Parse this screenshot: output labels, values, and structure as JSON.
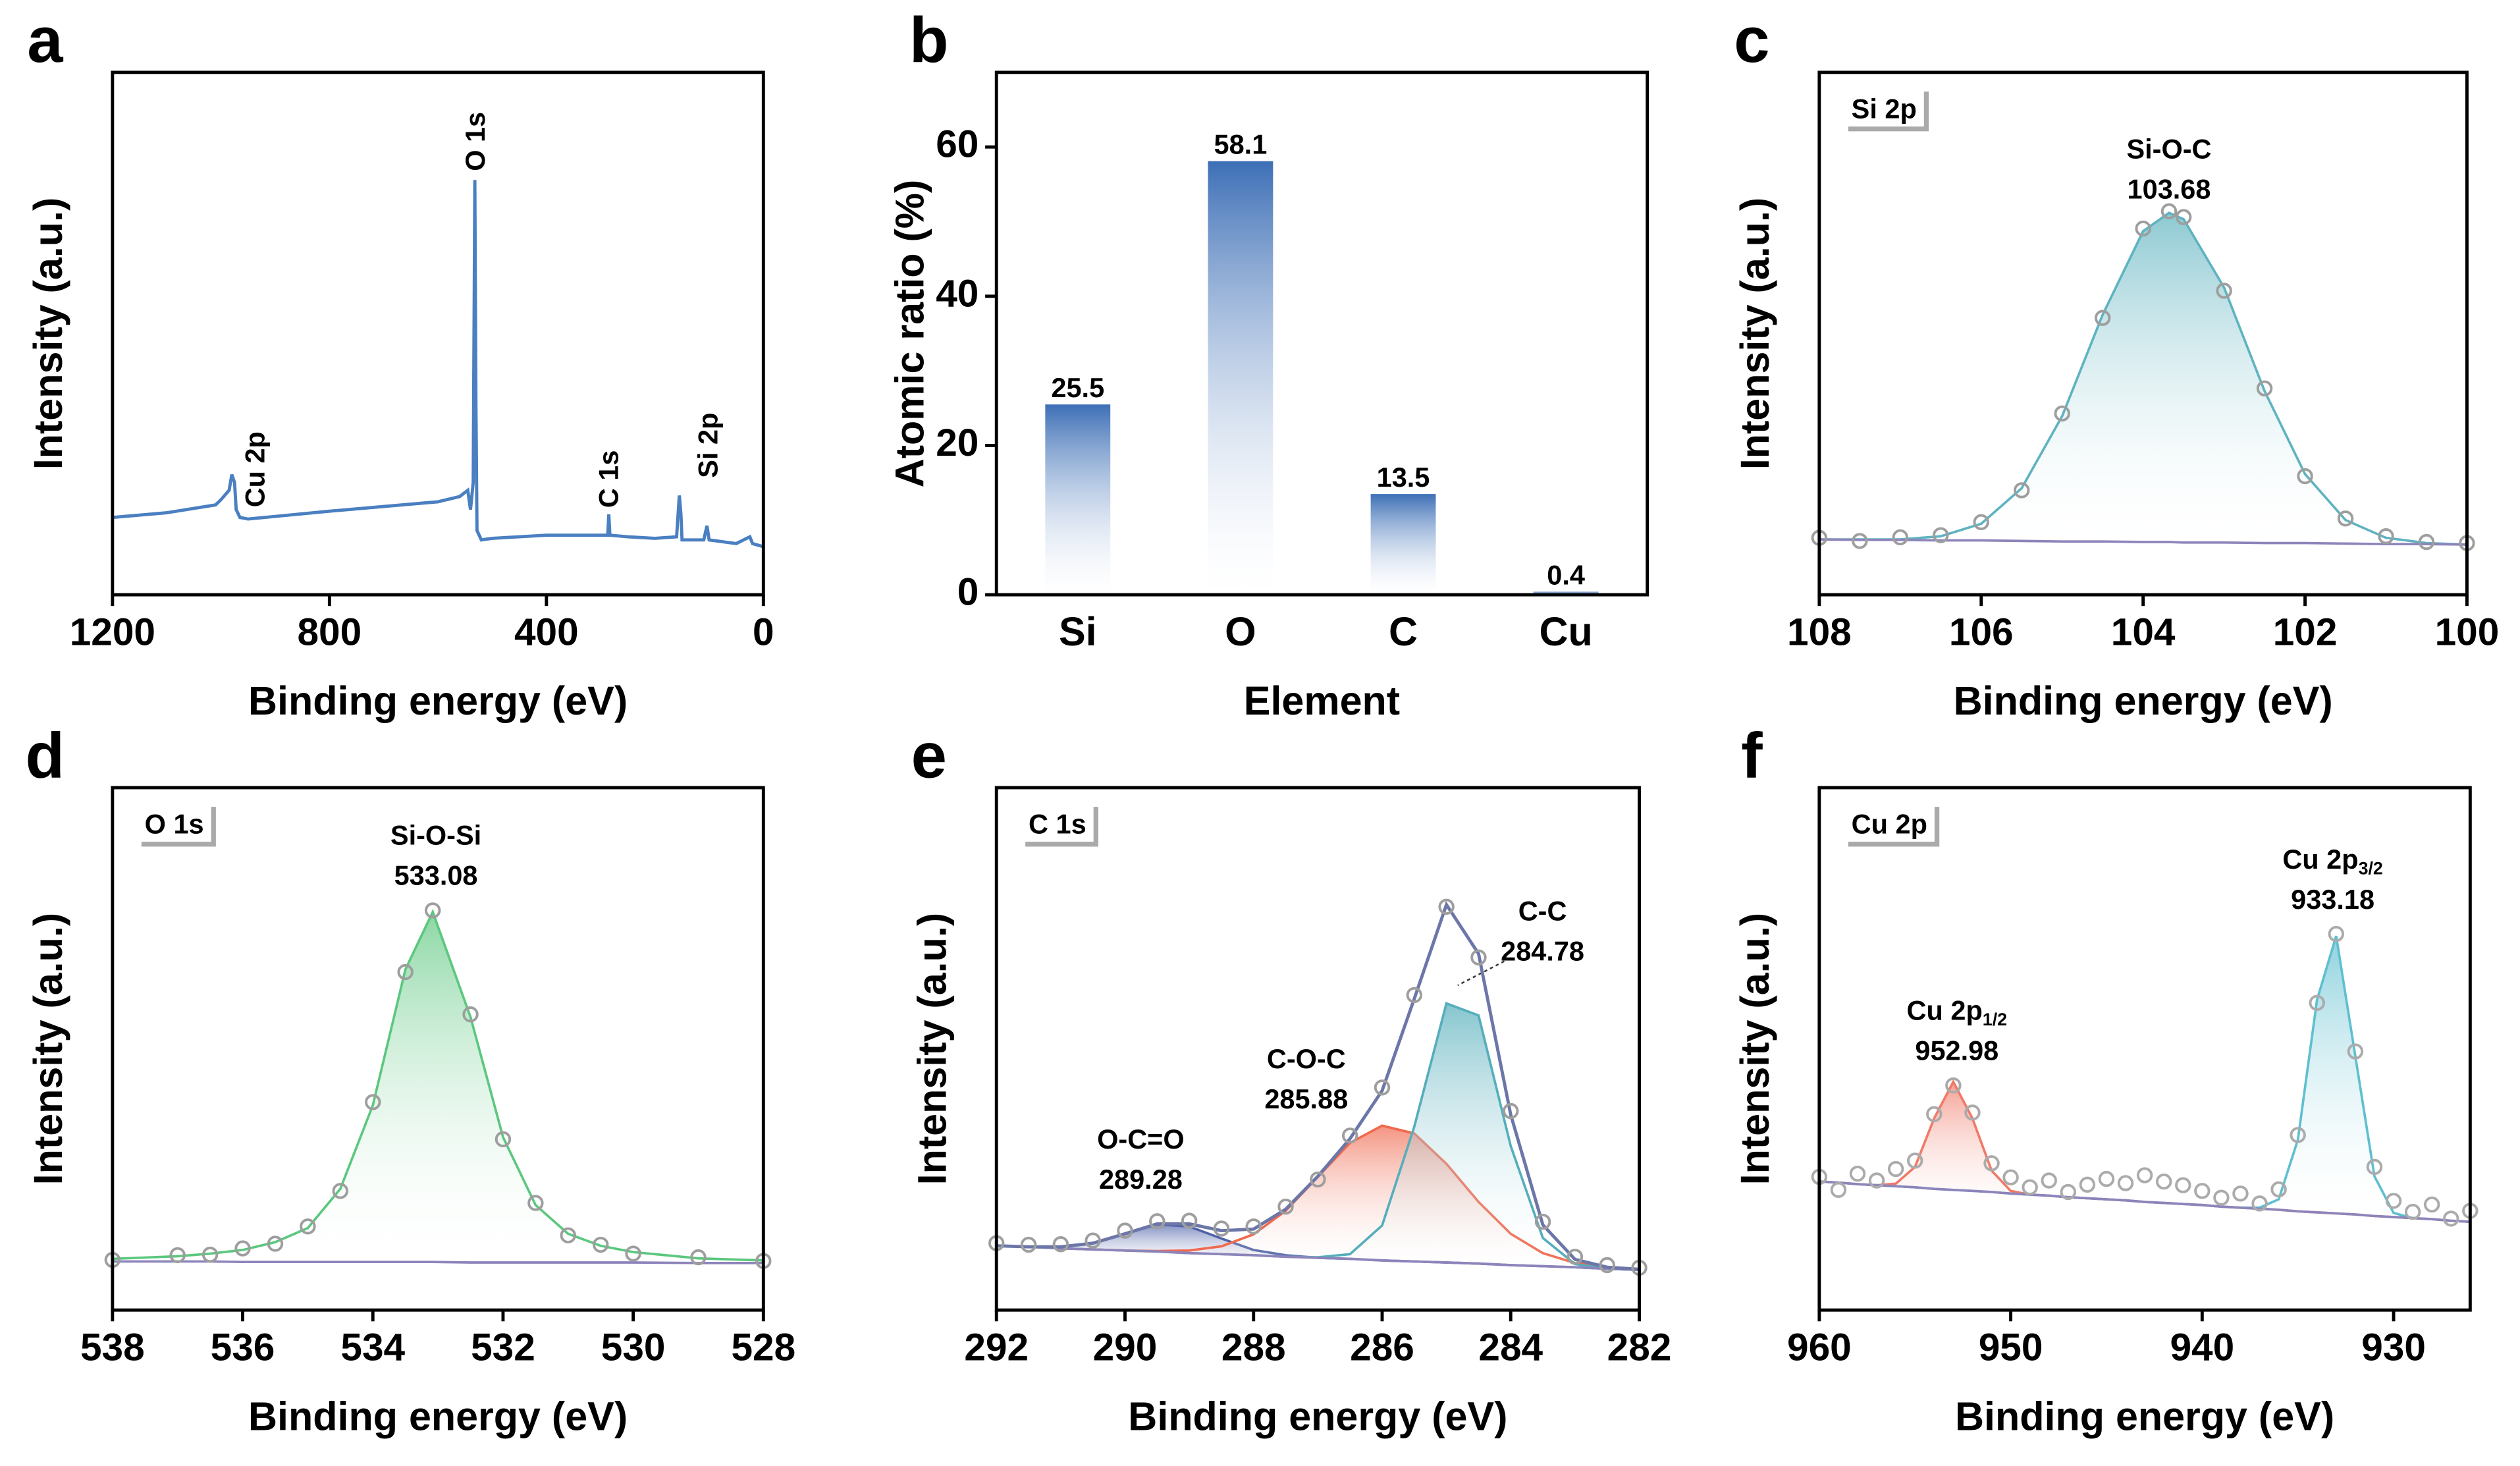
{
  "chart_data": [
    {
      "type": "line",
      "panel": "a",
      "xlabel": "Binding energy (eV)",
      "ylabel": "Intensity (a.u.)",
      "xlim": [
        1200,
        0
      ],
      "xticks": [
        1200,
        800,
        400,
        0
      ],
      "ylim": [
        0,
        100
      ],
      "x": [
        1200,
        1100,
        1010,
        1000,
        985,
        980,
        975,
        972,
        965,
        950,
        900,
        800,
        700,
        600,
        560,
        545,
        540,
        535,
        532,
        530,
        528,
        520,
        500,
        400,
        300,
        287,
        285,
        283,
        250,
        200,
        160,
        155,
        152,
        150,
        110,
        104,
        100,
        50,
        25,
        20,
        0
      ],
      "series": [
        {
          "mode": "line",
          "color": "#4a7fc1",
          "values": [
            14.8,
            15.7,
            17.2,
            18.2,
            20.0,
            23.0,
            21.5,
            16.3,
            14.8,
            14.5,
            15.0,
            16.0,
            16.9,
            17.8,
            18.8,
            20.0,
            16.3,
            21.5,
            79.4,
            36.9,
            12.3,
            10.5,
            10.8,
            11.4,
            11.4,
            11.4,
            15.4,
            11.4,
            11.1,
            10.8,
            11.1,
            19.0,
            15.4,
            10.5,
            10.5,
            13.2,
            10.5,
            9.8,
            11.1,
            9.8,
            9.2
          ]
        }
      ],
      "annotations": [
        "O 1s",
        "Cu 2p",
        "C 1s",
        "Si 2p"
      ]
    },
    {
      "type": "bar",
      "panel": "b",
      "xlabel": "Element",
      "ylabel": "Atomic ratio (%)",
      "categories": [
        "Si",
        "O",
        "C",
        "Cu"
      ],
      "values": [
        25.5,
        58.1,
        13.5,
        0.4
      ],
      "color": "#3d6fb6",
      "ylim": [
        0,
        70
      ],
      "yticks": [
        0,
        20,
        40,
        60
      ]
    },
    {
      "type": "spectrum",
      "panel": "c",
      "label": "Si 2p",
      "xlabel": "Binding energy (eV)",
      "ylabel": "Intensity (a.u.)",
      "xlim": [
        108,
        100
      ],
      "xticks": [
        108,
        106,
        104,
        102,
        100
      ],
      "ylim": [
        0,
        100
      ],
      "x": [
        108,
        107.5,
        107,
        106.5,
        106,
        105.5,
        105,
        104.5,
        104,
        103.68,
        103.5,
        103,
        102.5,
        102,
        101.5,
        101,
        100.5,
        100
      ],
      "series": [
        {
          "mode": "area",
          "color": "#5fb3c0",
          "values": [
            10.6,
            10.6,
            10.6,
            11.2,
            13.6,
            20.4,
            34.2,
            53.6,
            69.6,
            73.1,
            71.9,
            58.8,
            39.0,
            23.1,
            14.3,
            10.9,
            9.9,
            9.6
          ]
        },
        {
          "mode": "baseline",
          "color": "#8d84bb",
          "values": [
            10.6,
            10.5,
            10.5,
            10.4,
            10.4,
            10.3,
            10.2,
            10.2,
            10.1,
            10.1,
            10.0,
            10.0,
            9.9,
            9.9,
            9.8,
            9.7,
            9.7,
            9.6
          ]
        },
        {
          "mode": "markers",
          "color": "#9e9e9e",
          "values": [
            10.9,
            10.3,
            11.0,
            11.4,
            13.9,
            20.0,
            34.7,
            53.0,
            70.1,
            73.4,
            72.3,
            58.2,
            39.5,
            22.7,
            14.6,
            11.2,
            10.1,
            9.9
          ]
        }
      ],
      "peaks": [
        {
          "label": "Si-O-C",
          "x": 103.68
        }
      ]
    },
    {
      "type": "spectrum",
      "panel": "d",
      "label": "O 1s",
      "xlabel": "Binding energy (eV)",
      "ylabel": "Intensity (a.u.)",
      "xlim": [
        538,
        528
      ],
      "xticks": [
        538,
        536,
        534,
        532,
        530,
        528
      ],
      "ylim": [
        0,
        100
      ],
      "x": [
        538,
        537,
        536.5,
        536,
        535.5,
        535,
        534.5,
        534,
        533.5,
        533.08,
        532.5,
        532,
        531.5,
        531,
        530.5,
        530,
        529,
        528
      ],
      "series": [
        {
          "mode": "area",
          "color": "#5cc77f",
          "values": [
            9.8,
            10.3,
            10.8,
            11.5,
            13.0,
            15.7,
            23.2,
            39.2,
            65.2,
            76.2,
            56.1,
            33.1,
            20.1,
            14.6,
            12.3,
            11.1,
            9.9,
            9.5
          ]
        },
        {
          "mode": "baseline",
          "color": "#8d84bb",
          "values": [
            9.3,
            9.3,
            9.3,
            9.2,
            9.2,
            9.2,
            9.2,
            9.2,
            9.2,
            9.2,
            9.1,
            9.1,
            9.1,
            9.1,
            9.1,
            9.1,
            9.0,
            9.0
          ]
        },
        {
          "mode": "markers",
          "color": "#9e9e9e",
          "values": [
            9.6,
            10.5,
            10.6,
            11.8,
            12.7,
            16.0,
            22.8,
            39.8,
            64.7,
            76.5,
            56.6,
            32.7,
            20.5,
            14.3,
            12.5,
            10.8,
            10.1,
            9.4
          ]
        }
      ],
      "peaks": [
        {
          "label": "Si-O-Si",
          "x": 533.08
        }
      ]
    },
    {
      "type": "spectrum",
      "panel": "e",
      "label": "C 1s",
      "xlabel": "Binding energy (eV)",
      "ylabel": "Intensity (a.u.)",
      "xlim": [
        292,
        282
      ],
      "xticks": [
        292,
        290,
        288,
        286,
        284,
        282
      ],
      "ylim": [
        0,
        100
      ],
      "x": [
        292,
        291.5,
        291,
        290.5,
        290,
        289.5,
        289,
        288.5,
        288,
        287.5,
        287,
        286.5,
        286,
        285.5,
        285,
        284.5,
        284,
        283.5,
        283,
        282.5,
        282
      ],
      "series": [
        {
          "mode": "area",
          "color": "#4f63a8",
          "values": [
            12.3,
            12.1,
            12.1,
            12.8,
            14.6,
            16.4,
            16.0,
            13.7,
            11.5,
            10.5,
            10.0,
            9.8,
            9.5,
            9.3,
            9.1,
            8.9,
            8.6,
            8.4,
            8.2,
            7.9,
            7.7
          ]
        },
        {
          "mode": "area",
          "color": "#f0694f",
          "values": [
            12.3,
            12.1,
            11.8,
            11.6,
            11.4,
            11.3,
            11.4,
            12.2,
            14.5,
            19.0,
            25.5,
            32.0,
            35.3,
            33.8,
            28.0,
            20.7,
            14.6,
            10.9,
            9.0,
            8.2,
            7.8
          ]
        },
        {
          "mode": "area",
          "color": "#55aebb",
          "values": [
            12.3,
            12.1,
            11.8,
            11.6,
            11.4,
            11.2,
            10.9,
            10.7,
            10.5,
            10.2,
            10.1,
            10.7,
            16.2,
            35.1,
            58.7,
            56.4,
            31.4,
            13.8,
            8.8,
            7.9,
            7.7
          ]
        },
        {
          "mode": "baseline",
          "color": "#8d84bb",
          "values": [
            12.3,
            12.1,
            11.8,
            11.6,
            11.4,
            11.2,
            10.9,
            10.7,
            10.5,
            10.2,
            10.0,
            9.8,
            9.5,
            9.3,
            9.1,
            8.9,
            8.6,
            8.4,
            8.2,
            7.9,
            7.7
          ]
        },
        {
          "mode": "line",
          "color": "#6c76a8",
          "values": [
            12.3,
            12.1,
            12.1,
            12.8,
            14.6,
            16.5,
            16.5,
            15.2,
            15.5,
            19.3,
            25.6,
            32.8,
            42.0,
            59.6,
            77.6,
            68.2,
            37.4,
            16.3,
            9.7,
            8.2,
            7.8
          ]
        },
        {
          "mode": "markers",
          "color": "#9e9e9e",
          "values": [
            12.8,
            12.5,
            12.6,
            13.3,
            15.2,
            17.0,
            17.1,
            15.6,
            16.0,
            19.8,
            25.0,
            33.4,
            42.6,
            60.3,
            77.2,
            67.5,
            38.1,
            16.9,
            10.2,
            8.6,
            8.1
          ]
        }
      ],
      "peaks": [
        {
          "label": "O-C=O",
          "x": 289.28
        },
        {
          "label": "C-O-C",
          "x": 285.88
        },
        {
          "label": "C-C",
          "x": 284.78
        }
      ]
    },
    {
      "type": "spectrum",
      "panel": "f",
      "label": "Cu 2p",
      "xlabel": "Binding energy (eV)",
      "ylabel": "Intensity (a.u.)",
      "xlim": [
        960,
        926
      ],
      "xticks": [
        960,
        950,
        940,
        930
      ],
      "ylim": [
        0,
        100
      ],
      "x": [
        960,
        959,
        958,
        957,
        956,
        955,
        954,
        953,
        952,
        951,
        950,
        949,
        948,
        947,
        946,
        945,
        944,
        943,
        942,
        941,
        940,
        939,
        938,
        937,
        936,
        935,
        934,
        933,
        932,
        931,
        930,
        929,
        928,
        927,
        926
      ],
      "series": [
        {
          "mode": "area",
          "color": "#f07a68",
          "values": [
            24.6,
            24.4,
            24.1,
            23.9,
            24.2,
            27.4,
            36.7,
            43.7,
            36.7,
            26.7,
            22.8,
            22.1,
            21.9,
            21.6,
            21.4,
            21.2,
            21.0,
            20.7,
            20.5,
            20.3,
            20.1,
            19.8,
            19.6,
            19.4,
            19.2,
            18.9,
            18.7,
            18.5,
            18.3,
            18.0,
            17.8,
            17.6,
            17.4,
            17.1,
            16.9
          ]
        },
        {
          "mode": "area",
          "color": "#5fbfd0",
          "values": [
            24.6,
            24.4,
            24.1,
            23.9,
            23.7,
            23.5,
            23.2,
            23.0,
            22.8,
            22.6,
            22.3,
            22.1,
            21.9,
            21.6,
            21.4,
            21.2,
            21.0,
            20.7,
            20.5,
            20.3,
            20.1,
            19.8,
            19.6,
            19.6,
            21.2,
            32.6,
            59.4,
            71.6,
            48.6,
            25.6,
            18.6,
            17.6,
            17.4,
            17.1,
            16.9
          ]
        },
        {
          "mode": "baseline",
          "color": "#8d84bb",
          "values": [
            24.6,
            24.4,
            24.1,
            23.9,
            23.7,
            23.5,
            23.2,
            23.0,
            22.8,
            22.6,
            22.3,
            22.1,
            21.9,
            21.6,
            21.4,
            21.2,
            21.0,
            20.7,
            20.5,
            20.3,
            20.1,
            19.8,
            19.6,
            19.4,
            19.2,
            18.9,
            18.7,
            18.5,
            18.3,
            18.0,
            17.8,
            17.6,
            17.4,
            17.1,
            16.9
          ]
        },
        {
          "mode": "markers",
          "color": "#ababab",
          "values": [
            25.5,
            23.0,
            26.1,
            24.8,
            27.0,
            28.6,
            37.5,
            43.0,
            37.8,
            28.1,
            25.4,
            23.5,
            24.8,
            22.6,
            24.0,
            25.1,
            24.3,
            25.8,
            24.6,
            23.9,
            22.8,
            21.5,
            22.3,
            20.4,
            23.1,
            33.5,
            58.8,
            72.0,
            49.5,
            27.4,
            20.9,
            18.8,
            20.2,
            17.5,
            19.0
          ]
        }
      ],
      "peaks": [
        {
          "label": "Cu 2p",
          "sub": "1/2",
          "x": 952.98
        },
        {
          "label": "Cu 2p",
          "sub": "3/2",
          "x": 933.18
        }
      ]
    }
  ]
}
